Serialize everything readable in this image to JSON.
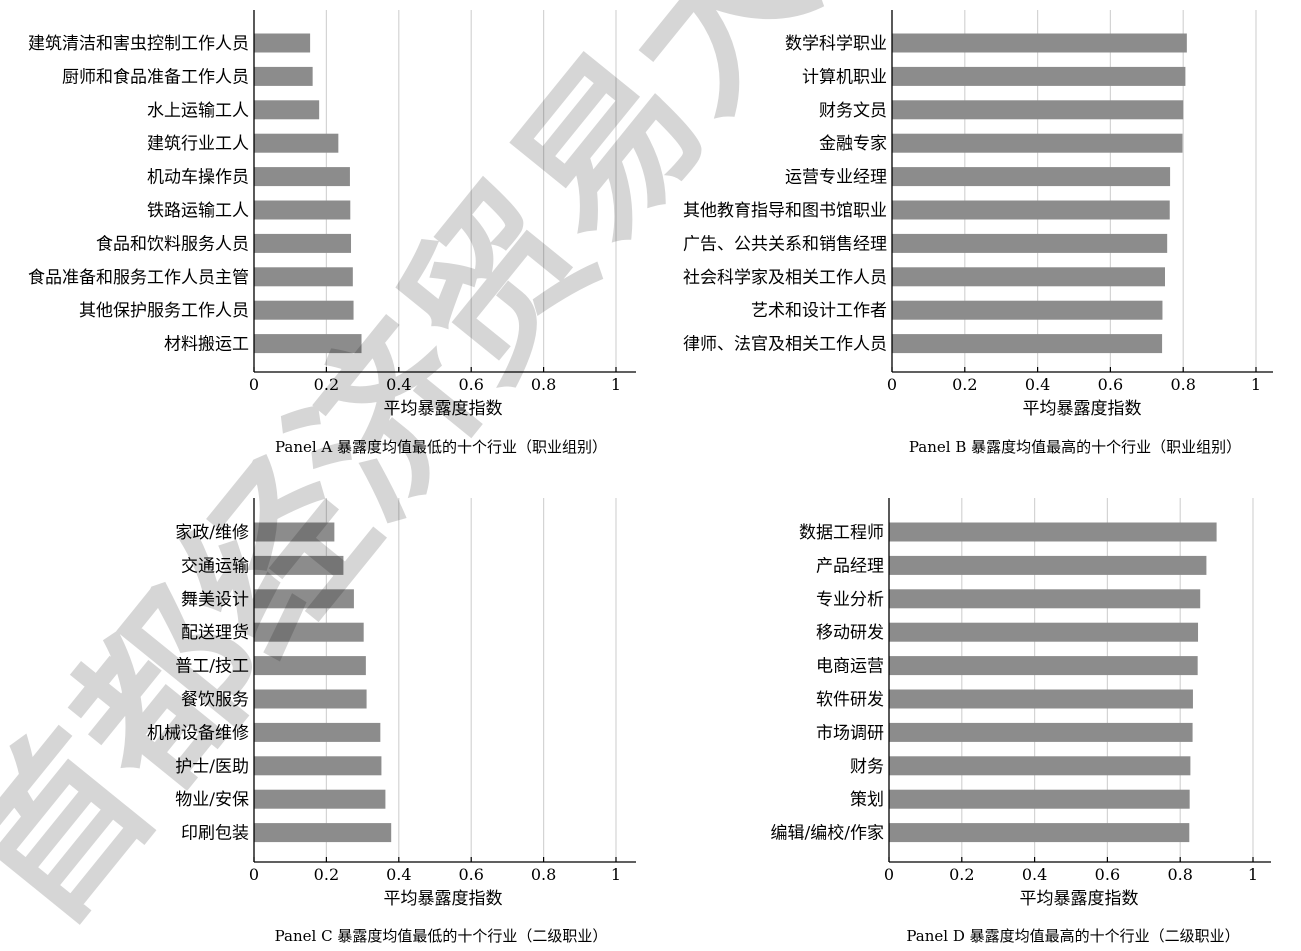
{
  "colors": {
    "bar": "#8c8c8c",
    "grid": "#d4d4d4",
    "axis": "#000000"
  },
  "watermark": {
    "text": "首都经济贸易大"
  },
  "chart_data": [
    {
      "type": "bar",
      "orientation": "horizontal",
      "panel_caption": "Panel A 暴露度均值最低的十个行业（职业组别）",
      "xlabel": "平均暴露度指数",
      "xlim": [
        0,
        1
      ],
      "xticks": [
        "0",
        "0.2",
        "0.4",
        "0.6",
        "0.8",
        "1"
      ],
      "grid": "vertical",
      "categories": [
        "建筑清洁和害虫控制工作人员",
        "厨师和食品准备工作人员",
        "水上运输工人",
        "建筑行业工人",
        "机动车操作员",
        "铁路运输工人",
        "食品和饮料服务人员",
        "食品准备和服务工作人员主管",
        "其他保护服务工作人员",
        "材料搬运工"
      ],
      "values": [
        0.155,
        0.162,
        0.18,
        0.233,
        0.265,
        0.266,
        0.268,
        0.273,
        0.275,
        0.297
      ]
    },
    {
      "type": "bar",
      "orientation": "horizontal",
      "panel_caption": "Panel B 暴露度均值最高的十个行业（职业组别）",
      "xlabel": "平均暴露度指数",
      "xlim": [
        0,
        1
      ],
      "xticks": [
        "0",
        "0.2",
        "0.4",
        "0.6",
        "0.8",
        "1"
      ],
      "grid": "vertical",
      "categories": [
        "数学科学职业",
        "计算机职业",
        "财务文员",
        "金融专家",
        "运营专业经理",
        "其他教育指导和图书馆职业",
        "广告、公共关系和销售经理",
        "社会科学家及相关工作人员",
        "艺术和设计工作者",
        "律师、法官及相关工作人员"
      ],
      "values": [
        0.81,
        0.806,
        0.8,
        0.798,
        0.764,
        0.763,
        0.756,
        0.75,
        0.743,
        0.742
      ]
    },
    {
      "type": "bar",
      "orientation": "horizontal",
      "panel_caption": "Panel C 暴露度均值最低的十个行业（二级职业）",
      "xlabel": "平均暴露度指数",
      "xlim": [
        0,
        1
      ],
      "xticks": [
        "0",
        "0.2",
        "0.4",
        "0.6",
        "0.8",
        "1"
      ],
      "grid": "vertical",
      "categories": [
        "家政/维修",
        "交通运输",
        "舞美设计",
        "配送理货",
        "普工/技工",
        "餐饮服务",
        "机械设备维修",
        "护士/医助",
        "物业/安保",
        "印刷包装"
      ],
      "values": [
        0.222,
        0.247,
        0.276,
        0.303,
        0.309,
        0.311,
        0.349,
        0.352,
        0.363,
        0.379
      ]
    },
    {
      "type": "bar",
      "orientation": "horizontal",
      "panel_caption": "Panel D 暴露度均值最高的十个行业（二级职业）",
      "xlabel": "平均暴露度指数",
      "xlim": [
        0,
        1
      ],
      "xticks": [
        "0",
        "0.2",
        "0.4",
        "0.6",
        "0.8",
        "1"
      ],
      "grid": "vertical",
      "categories": [
        "数据工程师",
        "产品经理",
        "专业分析",
        "移动研发",
        "电商运营",
        "软件研发",
        "市场调研",
        "财务",
        "策划",
        "编辑/编校/作家"
      ],
      "values": [
        0.9,
        0.872,
        0.855,
        0.849,
        0.848,
        0.835,
        0.834,
        0.828,
        0.826,
        0.825
      ]
    }
  ]
}
